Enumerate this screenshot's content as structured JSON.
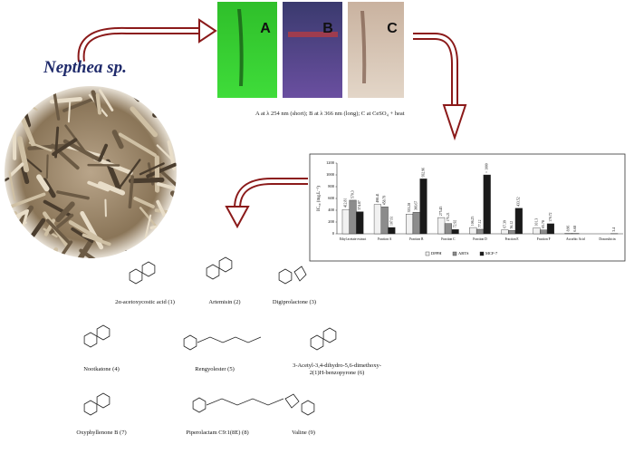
{
  "organism": "Nepthea sp.",
  "tlc": {
    "labels": [
      "A",
      "B",
      "C"
    ],
    "caption": "A at λ 254 nm (short); B at λ 366 nm (long); C at CeSO₄ + heat"
  },
  "chart_data": {
    "type": "bar",
    "y_label": "IC₅₀ (mg.L⁻¹)",
    "categories": [
      "Ethyl acetate extract",
      "Fraction A",
      "Fraction B",
      "Fraction C",
      "Fraction D",
      "Fraction E",
      "Fraction F",
      "Ascorbic Acid",
      "Doxorubicin"
    ],
    "series": [
      {
        "name": "DPPH",
        "color": "#ffffff",
        "values": [
          412.81,
          498.41,
          333.28,
          275.45,
          106.25,
          67.39,
          101.3,
          8.96,
          null
        ]
      },
      {
        "name": "ABTS",
        "color": "#8c8c8c",
        "values": [
          570.3,
          458.79,
          366.67,
          175.21,
          77.12,
          56.12,
          65.78,
          6.68,
          null
        ]
      },
      {
        "name": "MCF-7",
        "color": "#1a1a1a",
        "values": [
          374.87,
          107.61,
          932.96,
          72.92,
          1000,
          433.52,
          170.72,
          null,
          3.4
        ],
        "value_labels": [
          "374.87",
          "107.61",
          "932.96",
          "72.92",
          "> 1000",
          "433.52",
          "170.72",
          null,
          "3.4"
        ]
      }
    ],
    "ylim": [
      0,
      1200
    ],
    "yticks": [
      0,
      200,
      400,
      600,
      800,
      1000,
      1200
    ],
    "grid": false,
    "legend": "bottom"
  },
  "compounds": [
    "2α-acetoxycostic acid (1)",
    "Artemisin (2)",
    "Digiprolactone (3)",
    "Nootkatone (4)",
    "Rengyolester (5)",
    "3-Acetyl-3,4-dihydro-5,6-dimethoxy-2(1)H-benzopyrone (6)",
    "Oxyphyllenone B (7)",
    "Piperolactam C9:1(8E) (8)",
    "Valine (9)"
  ]
}
